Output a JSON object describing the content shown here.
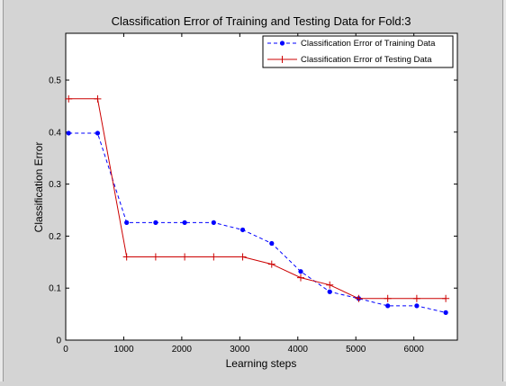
{
  "chart_data": {
    "type": "line",
    "title": "Classification Error of Training and Testing Data for Fold:3",
    "xlabel": "Learning steps",
    "ylabel": "Classification Error",
    "xlim": [
      0,
      6750
    ],
    "ylim": [
      0,
      0.59
    ],
    "xticks": [
      0,
      1000,
      2000,
      3000,
      4000,
      5000,
      6000
    ],
    "yticks": [
      0,
      0.1,
      0.2,
      0.3,
      0.4,
      0.5
    ],
    "grid": false,
    "legend_position": "top-right",
    "series": [
      {
        "name": "Classification Error of Training Data",
        "color": "#0000ff",
        "line_style": "dashed",
        "marker": "dot",
        "x": [
          50,
          550,
          1050,
          1550,
          2050,
          2550,
          3050,
          3550,
          4050,
          4550,
          5050,
          5550,
          6050,
          6550
        ],
        "y": [
          0.398,
          0.398,
          0.226,
          0.226,
          0.226,
          0.226,
          0.212,
          0.186,
          0.132,
          0.093,
          0.08,
          0.066,
          0.066,
          0.053
        ]
      },
      {
        "name": "Classification Error of Testing Data",
        "color": "#cc0000",
        "line_style": "solid",
        "marker": "plus",
        "x": [
          50,
          550,
          1050,
          1550,
          2050,
          2550,
          3050,
          3550,
          4050,
          4550,
          5050,
          5550,
          6050,
          6550
        ],
        "y": [
          0.464,
          0.464,
          0.16,
          0.16,
          0.16,
          0.16,
          0.16,
          0.146,
          0.12,
          0.106,
          0.08,
          0.08,
          0.08,
          0.08
        ]
      }
    ]
  }
}
